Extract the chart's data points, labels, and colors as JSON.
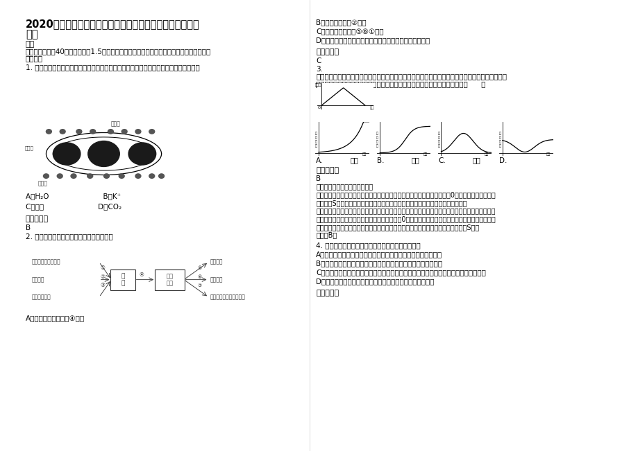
{
  "bg_color": "#ffffff",
  "text_color": "#000000",
  "fig_width": 9.2,
  "fig_height": 6.51,
  "dpi": 100,
  "title_line1": "2020年辽宁省鞍山市第四十中学高二生物上学期期末试题含",
  "title_line2": "解析",
  "analysis_lines": [
    "【考点】种群数量的变化曲线。",
    "【分析】根据题意和图示分析可知：在时间的开始和结束，种群增长率都为0，所以小球藻数量的变",
    "化曲线为S型。种群增长率最大时，说明出生率大于死亡率，种群数量在大量增加。",
    "【解答】解，根据种群增长率曲线可知，时间一半时，种群增长率最大，种群数量增加，此时种群的",
    "年龄组成为增长型。时间结束时，种群增长率为0，所以种内斗争加剧，捕食者数量增加，种群出生",
    "率下降，死亡率升高，所以种群数量不再增加。因此，小球藻种群数量变化的曲线是S型。",
    "故选：B。"
  ]
}
